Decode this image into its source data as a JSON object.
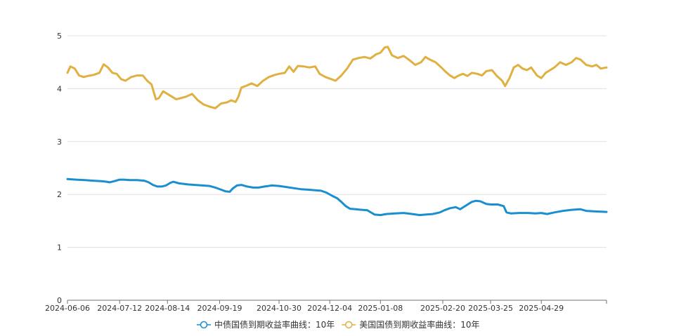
{
  "chart_data": {
    "type": "line",
    "title": "",
    "xlabel": "",
    "ylabel": "",
    "ylim": [
      0,
      5
    ],
    "yticks": [
      0,
      1,
      2,
      3,
      4,
      5
    ],
    "x_range": [
      "2024-06-06",
      "2025-06-13"
    ],
    "xticks": [
      "2024-06-06",
      "2024-07-12",
      "2024-08-14",
      "2024-09-19",
      "2024-10-30",
      "2024-12-04",
      "2025-01-08",
      "2025-02-20",
      "2025-03-25",
      "2025-04-29"
    ],
    "grid": {
      "horizontal": true,
      "vertical": false
    },
    "legend_position": "bottom-center",
    "series": [
      {
        "name": "中债国债到期收益率曲线：10年",
        "color": "#1a8fcf",
        "points": [
          [
            "2024-06-06",
            2.29
          ],
          [
            "2024-06-12",
            2.28
          ],
          [
            "2024-06-18",
            2.27
          ],
          [
            "2024-06-24",
            2.26
          ],
          [
            "2024-06-30",
            2.25
          ],
          [
            "2024-07-03",
            2.24
          ],
          [
            "2024-07-05",
            2.23
          ],
          [
            "2024-07-08",
            2.25
          ],
          [
            "2024-07-12",
            2.28
          ],
          [
            "2024-07-15",
            2.28
          ],
          [
            "2024-07-19",
            2.27
          ],
          [
            "2024-07-24",
            2.27
          ],
          [
            "2024-07-29",
            2.26
          ],
          [
            "2024-08-01",
            2.23
          ],
          [
            "2024-08-04",
            2.18
          ],
          [
            "2024-08-07",
            2.15
          ],
          [
            "2024-08-10",
            2.15
          ],
          [
            "2024-08-13",
            2.17
          ],
          [
            "2024-08-16",
            2.22
          ],
          [
            "2024-08-18",
            2.24
          ],
          [
            "2024-08-22",
            2.21
          ],
          [
            "2024-08-28",
            2.19
          ],
          [
            "2024-09-02",
            2.18
          ],
          [
            "2024-09-07",
            2.17
          ],
          [
            "2024-09-12",
            2.16
          ],
          [
            "2024-09-16",
            2.13
          ],
          [
            "2024-09-20",
            2.09
          ],
          [
            "2024-09-23",
            2.06
          ],
          [
            "2024-09-26",
            2.05
          ],
          [
            "2024-09-28",
            2.11
          ],
          [
            "2024-10-01",
            2.17
          ],
          [
            "2024-10-04",
            2.18
          ],
          [
            "2024-10-08",
            2.15
          ],
          [
            "2024-10-12",
            2.13
          ],
          [
            "2024-10-16",
            2.13
          ],
          [
            "2024-10-20",
            2.15
          ],
          [
            "2024-10-25",
            2.17
          ],
          [
            "2024-10-30",
            2.16
          ],
          [
            "2024-11-04",
            2.14
          ],
          [
            "2024-11-09",
            2.12
          ],
          [
            "2024-11-14",
            2.1
          ],
          [
            "2024-11-19",
            2.09
          ],
          [
            "2024-11-24",
            2.08
          ],
          [
            "2024-11-28",
            2.07
          ],
          [
            "2024-12-02",
            2.03
          ],
          [
            "2024-12-06",
            1.97
          ],
          [
            "2024-12-09",
            1.93
          ],
          [
            "2024-12-12",
            1.86
          ],
          [
            "2024-12-15",
            1.78
          ],
          [
            "2024-12-18",
            1.73
          ],
          [
            "2024-12-22",
            1.72
          ],
          [
            "2024-12-26",
            1.71
          ],
          [
            "2024-12-30",
            1.7
          ],
          [
            "2025-01-02",
            1.65
          ],
          [
            "2025-01-04",
            1.62
          ],
          [
            "2025-01-08",
            1.61
          ],
          [
            "2025-01-12",
            1.63
          ],
          [
            "2025-01-18",
            1.64
          ],
          [
            "2025-01-24",
            1.65
          ],
          [
            "2025-01-30",
            1.63
          ],
          [
            "2025-02-04",
            1.61
          ],
          [
            "2025-02-08",
            1.62
          ],
          [
            "2025-02-13",
            1.63
          ],
          [
            "2025-02-18",
            1.66
          ],
          [
            "2025-02-21",
            1.7
          ],
          [
            "2025-02-25",
            1.74
          ],
          [
            "2025-03-01",
            1.76
          ],
          [
            "2025-03-04",
            1.72
          ],
          [
            "2025-03-08",
            1.79
          ],
          [
            "2025-03-12",
            1.86
          ],
          [
            "2025-03-15",
            1.88
          ],
          [
            "2025-03-18",
            1.87
          ],
          [
            "2025-03-22",
            1.82
          ],
          [
            "2025-03-25",
            1.81
          ],
          [
            "2025-03-30",
            1.81
          ],
          [
            "2025-04-03",
            1.78
          ],
          [
            "2025-04-05",
            1.66
          ],
          [
            "2025-04-08",
            1.64
          ],
          [
            "2025-04-14",
            1.65
          ],
          [
            "2025-04-20",
            1.65
          ],
          [
            "2025-04-25",
            1.64
          ],
          [
            "2025-04-29",
            1.65
          ],
          [
            "2025-05-03",
            1.63
          ],
          [
            "2025-05-08",
            1.66
          ],
          [
            "2025-05-14",
            1.69
          ],
          [
            "2025-05-20",
            1.71
          ],
          [
            "2025-05-26",
            1.72
          ],
          [
            "2025-05-30",
            1.69
          ],
          [
            "2025-06-04",
            1.68
          ],
          [
            "2025-06-13",
            1.67
          ]
        ]
      },
      {
        "name": "美国国债到期收益率曲线：10年",
        "color": "#e0b040",
        "points": [
          [
            "2024-06-06",
            4.3
          ],
          [
            "2024-06-08",
            4.42
          ],
          [
            "2024-06-11",
            4.38
          ],
          [
            "2024-06-14",
            4.25
          ],
          [
            "2024-06-17",
            4.22
          ],
          [
            "2024-06-20",
            4.24
          ],
          [
            "2024-06-24",
            4.26
          ],
          [
            "2024-06-28",
            4.3
          ],
          [
            "2024-07-01",
            4.46
          ],
          [
            "2024-07-04",
            4.4
          ],
          [
            "2024-07-07",
            4.3
          ],
          [
            "2024-07-10",
            4.28
          ],
          [
            "2024-07-13",
            4.18
          ],
          [
            "2024-07-16",
            4.15
          ],
          [
            "2024-07-20",
            4.22
          ],
          [
            "2024-07-24",
            4.25
          ],
          [
            "2024-07-28",
            4.25
          ],
          [
            "2024-07-31",
            4.15
          ],
          [
            "2024-08-03",
            4.08
          ],
          [
            "2024-08-06",
            3.8
          ],
          [
            "2024-08-08",
            3.82
          ],
          [
            "2024-08-11",
            3.95
          ],
          [
            "2024-08-14",
            3.9
          ],
          [
            "2024-08-17",
            3.85
          ],
          [
            "2024-08-20",
            3.8
          ],
          [
            "2024-08-23",
            3.82
          ],
          [
            "2024-08-27",
            3.85
          ],
          [
            "2024-08-31",
            3.9
          ],
          [
            "2024-09-04",
            3.78
          ],
          [
            "2024-09-08",
            3.7
          ],
          [
            "2024-09-12",
            3.66
          ],
          [
            "2024-09-16",
            3.63
          ],
          [
            "2024-09-20",
            3.72
          ],
          [
            "2024-09-24",
            3.74
          ],
          [
            "2024-09-27",
            3.78
          ],
          [
            "2024-09-30",
            3.75
          ],
          [
            "2024-10-02",
            3.85
          ],
          [
            "2024-10-04",
            4.02
          ],
          [
            "2024-10-07",
            4.05
          ],
          [
            "2024-10-11",
            4.1
          ],
          [
            "2024-10-15",
            4.05
          ],
          [
            "2024-10-19",
            4.15
          ],
          [
            "2024-10-23",
            4.22
          ],
          [
            "2024-10-27",
            4.26
          ],
          [
            "2024-10-30",
            4.28
          ],
          [
            "2024-11-03",
            4.3
          ],
          [
            "2024-11-06",
            4.42
          ],
          [
            "2024-11-09",
            4.32
          ],
          [
            "2024-11-12",
            4.43
          ],
          [
            "2024-11-16",
            4.42
          ],
          [
            "2024-11-20",
            4.4
          ],
          [
            "2024-11-24",
            4.42
          ],
          [
            "2024-11-27",
            4.28
          ],
          [
            "2024-12-01",
            4.22
          ],
          [
            "2024-12-05",
            4.18
          ],
          [
            "2024-12-08",
            4.15
          ],
          [
            "2024-12-12",
            4.25
          ],
          [
            "2024-12-16",
            4.38
          ],
          [
            "2024-12-20",
            4.55
          ],
          [
            "2024-12-24",
            4.58
          ],
          [
            "2024-12-28",
            4.6
          ],
          [
            "2025-01-01",
            4.57
          ],
          [
            "2025-01-05",
            4.65
          ],
          [
            "2025-01-08",
            4.68
          ],
          [
            "2025-01-11",
            4.78
          ],
          [
            "2025-01-13",
            4.79
          ],
          [
            "2025-01-16",
            4.63
          ],
          [
            "2025-01-20",
            4.58
          ],
          [
            "2025-01-24",
            4.62
          ],
          [
            "2025-01-28",
            4.54
          ],
          [
            "2025-02-01",
            4.45
          ],
          [
            "2025-02-05",
            4.5
          ],
          [
            "2025-02-08",
            4.6
          ],
          [
            "2025-02-11",
            4.55
          ],
          [
            "2025-02-15",
            4.5
          ],
          [
            "2025-02-19",
            4.4
          ],
          [
            "2025-02-22",
            4.32
          ],
          [
            "2025-02-25",
            4.25
          ],
          [
            "2025-02-28",
            4.2
          ],
          [
            "2025-03-03",
            4.25
          ],
          [
            "2025-03-06",
            4.28
          ],
          [
            "2025-03-09",
            4.24
          ],
          [
            "2025-03-12",
            4.3
          ],
          [
            "2025-03-16",
            4.28
          ],
          [
            "2025-03-19",
            4.25
          ],
          [
            "2025-03-22",
            4.33
          ],
          [
            "2025-03-26",
            4.35
          ],
          [
            "2025-03-29",
            4.25
          ],
          [
            "2025-04-02",
            4.15
          ],
          [
            "2025-04-04",
            4.05
          ],
          [
            "2025-04-07",
            4.2
          ],
          [
            "2025-04-10",
            4.4
          ],
          [
            "2025-04-13",
            4.45
          ],
          [
            "2025-04-16",
            4.38
          ],
          [
            "2025-04-19",
            4.35
          ],
          [
            "2025-04-22",
            4.4
          ],
          [
            "2025-04-26",
            4.25
          ],
          [
            "2025-04-29",
            4.2
          ],
          [
            "2025-05-02",
            4.3
          ],
          [
            "2025-05-05",
            4.35
          ],
          [
            "2025-05-08",
            4.4
          ],
          [
            "2025-05-12",
            4.5
          ],
          [
            "2025-05-16",
            4.45
          ],
          [
            "2025-05-20",
            4.5
          ],
          [
            "2025-05-23",
            4.58
          ],
          [
            "2025-05-26",
            4.55
          ],
          [
            "2025-05-30",
            4.45
          ],
          [
            "2025-06-03",
            4.42
          ],
          [
            "2025-06-06",
            4.45
          ],
          [
            "2025-06-09",
            4.38
          ],
          [
            "2025-06-13",
            4.4
          ]
        ]
      }
    ]
  }
}
